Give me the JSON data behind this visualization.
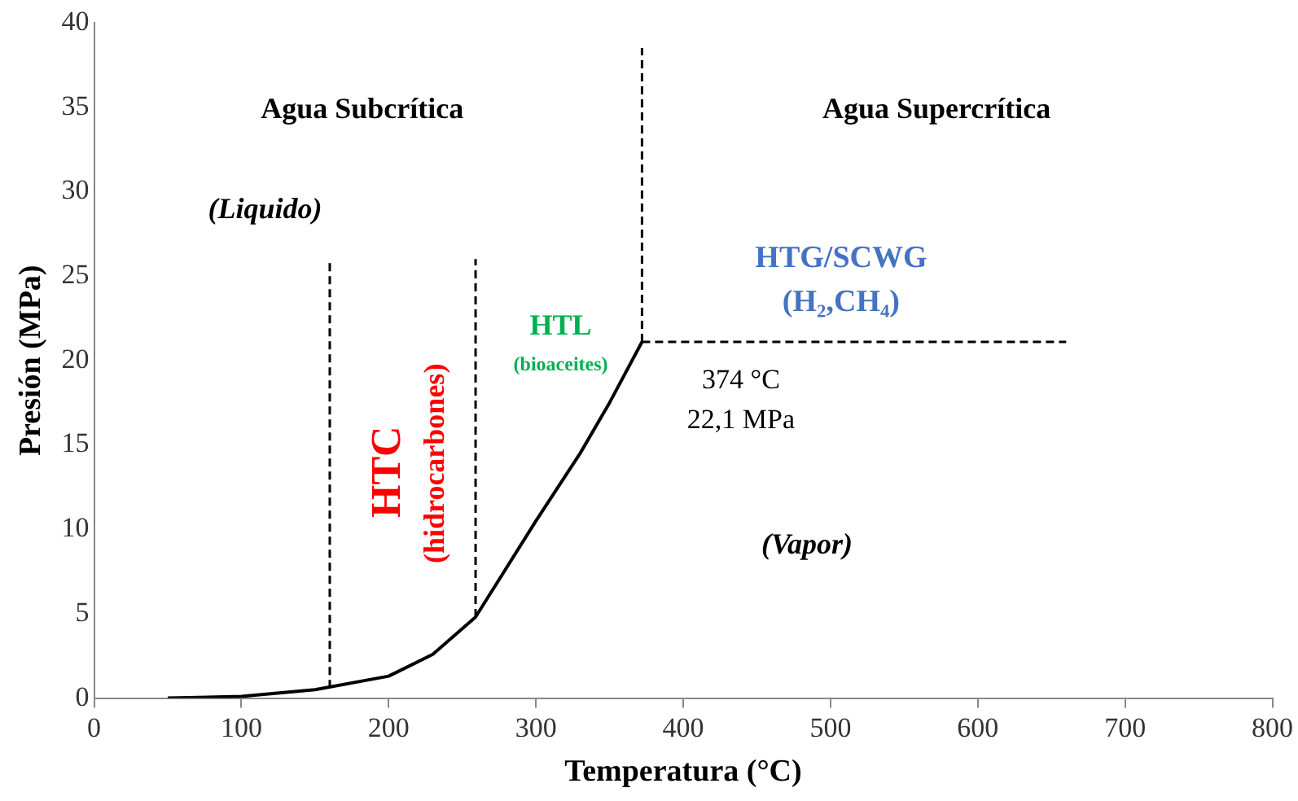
{
  "chart_data": {
    "type": "line",
    "xlabel": "Temperatura (°C)",
    "ylabel": "Presión (MPa)",
    "xlim": [
      0,
      800
    ],
    "xticks": [
      0,
      100,
      200,
      300,
      400,
      500,
      600,
      700,
      800
    ],
    "ylim": [
      0,
      40
    ],
    "yticks": [
      0,
      5,
      10,
      15,
      20,
      25,
      30,
      35,
      40
    ],
    "grid": false,
    "legend": false,
    "marker": "none",
    "series": [
      {
        "color": "#000000",
        "line_style": "solid",
        "x": [
          50,
          100,
          150,
          200,
          230,
          259,
          300,
          330,
          350,
          372
        ],
        "values": [
          0,
          0.1,
          0.5,
          1.3,
          2.6,
          4.8,
          10.5,
          14.5,
          17.5,
          21.1
        ]
      },
      {
        "color": "#000000",
        "line_style": "dashed",
        "x": [
          160,
          160
        ],
        "values": [
          0.6,
          26
        ]
      },
      {
        "color": "#000000",
        "line_style": "dashed",
        "x": [
          259,
          259
        ],
        "values": [
          4.8,
          26
        ]
      },
      {
        "color": "#000000",
        "line_style": "dashed",
        "x": [
          372,
          372
        ],
        "values": [
          21.1,
          38.5
        ]
      },
      {
        "color": "#000000",
        "line_style": "dashed",
        "x": [
          372,
          660
        ],
        "values": [
          21.1,
          21.1
        ]
      }
    ],
    "annotations": [
      "Agua Subcrítica",
      "Agua Supercrítica",
      "(Liquido)",
      "HTG/SCWG",
      "(H₂,CH₄)",
      "HTL",
      "(bioaceites)",
      "374 °C",
      "22,1 MPa",
      "HTC",
      "(hidrocarbones)",
      "(Vapor)"
    ]
  }
}
